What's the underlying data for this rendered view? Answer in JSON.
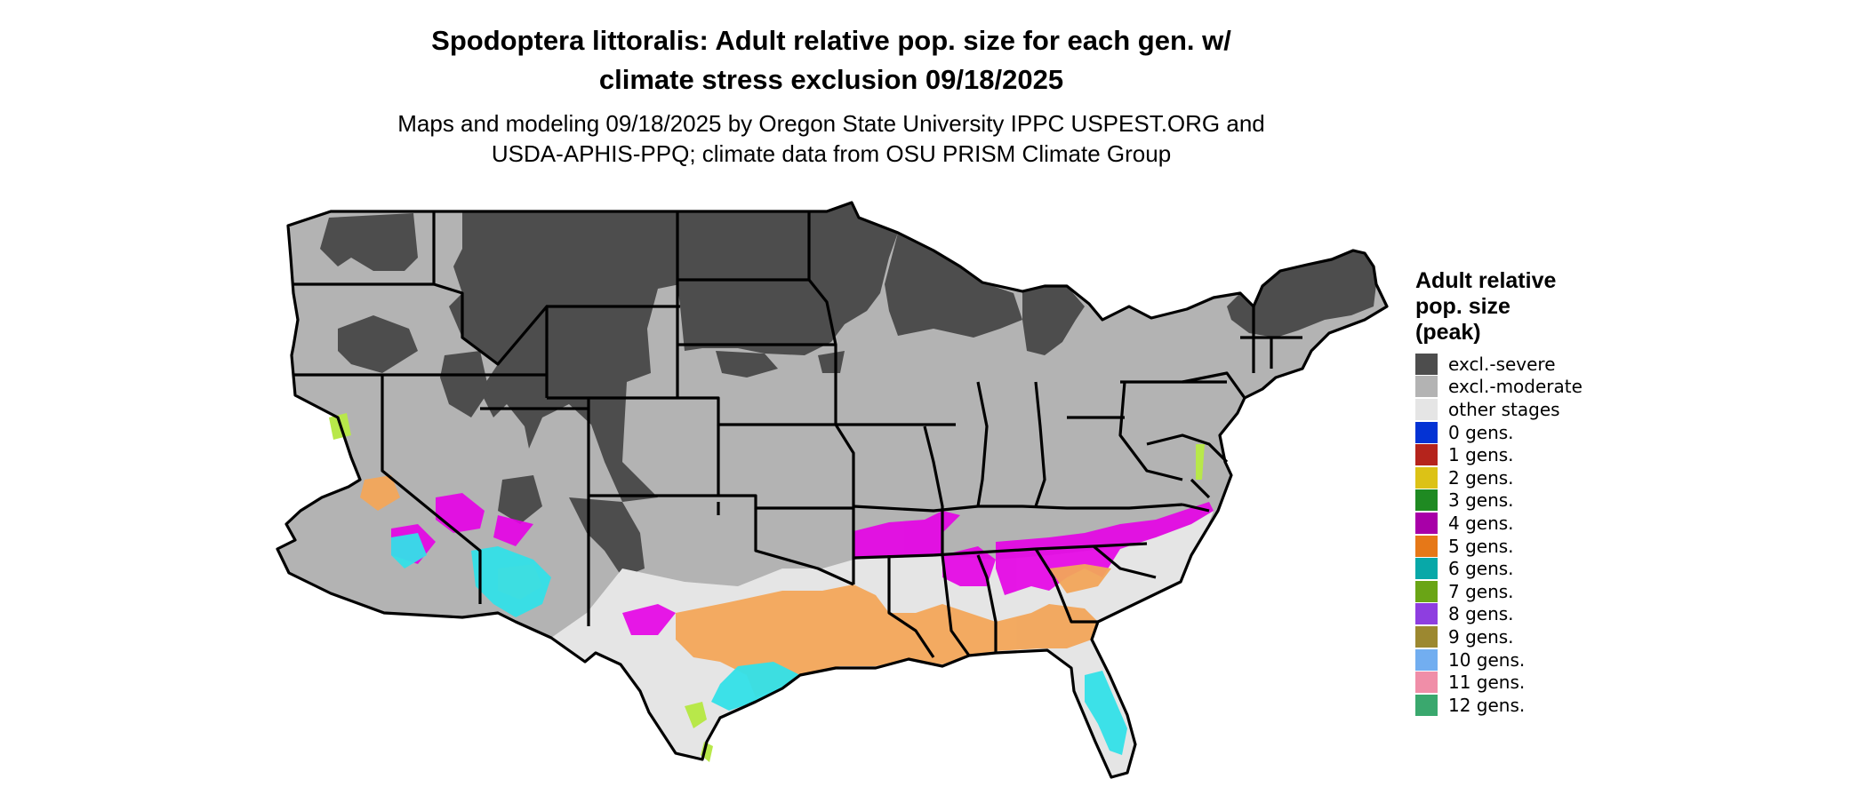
{
  "title": {
    "line1": "Spodoptera littoralis: Adult relative pop. size for each gen. w/",
    "line2": "climate stress exclusion 09/18/2025"
  },
  "subtitle": {
    "line1": "Maps and modeling 09/18/2025 by Oregon State University IPPC USPEST.ORG and",
    "line2": "USDA-APHIS-PPQ; climate data from OSU PRISM Climate Group"
  },
  "legend": {
    "title_lines": [
      "Adult relative",
      "pop. size",
      "(peak)"
    ],
    "items": [
      {
        "label": "excl.-severe",
        "color": "#4d4d4d"
      },
      {
        "label": "excl.-moderate",
        "color": "#b3b3b3"
      },
      {
        "label": "other stages",
        "color": "#e5e5e5"
      },
      {
        "label": "0 gens.",
        "color": "#0433d4"
      },
      {
        "label": "1 gens.",
        "color": "#b5241c"
      },
      {
        "label": "2 gens.",
        "color": "#dcc216"
      },
      {
        "label": "3 gens.",
        "color": "#1f8a22"
      },
      {
        "label": "4 gens.",
        "color": "#a800a8"
      },
      {
        "label": "5 gens.",
        "color": "#e67818"
      },
      {
        "label": "6 gens.",
        "color": "#08a8a8"
      },
      {
        "label": "7 gens.",
        "color": "#6aa516"
      },
      {
        "label": "8 gens.",
        "color": "#8e3ee0"
      },
      {
        "label": "9 gens.",
        "color": "#9c8830"
      },
      {
        "label": "10 gens.",
        "color": "#72aef0"
      },
      {
        "label": "11 gens.",
        "color": "#f08ea8"
      },
      {
        "label": "12 gens.",
        "color": "#3aa86e"
      }
    ]
  },
  "map_colors": {
    "severe": "#4d4d4d",
    "moderate": "#b3b3b3",
    "other": "#e5e5e5",
    "gen4": "#e600e6",
    "gen5": "#f3a65a",
    "gen6": "#33e0e8",
    "gen7": "#b8e84a",
    "borders": "#000000"
  }
}
